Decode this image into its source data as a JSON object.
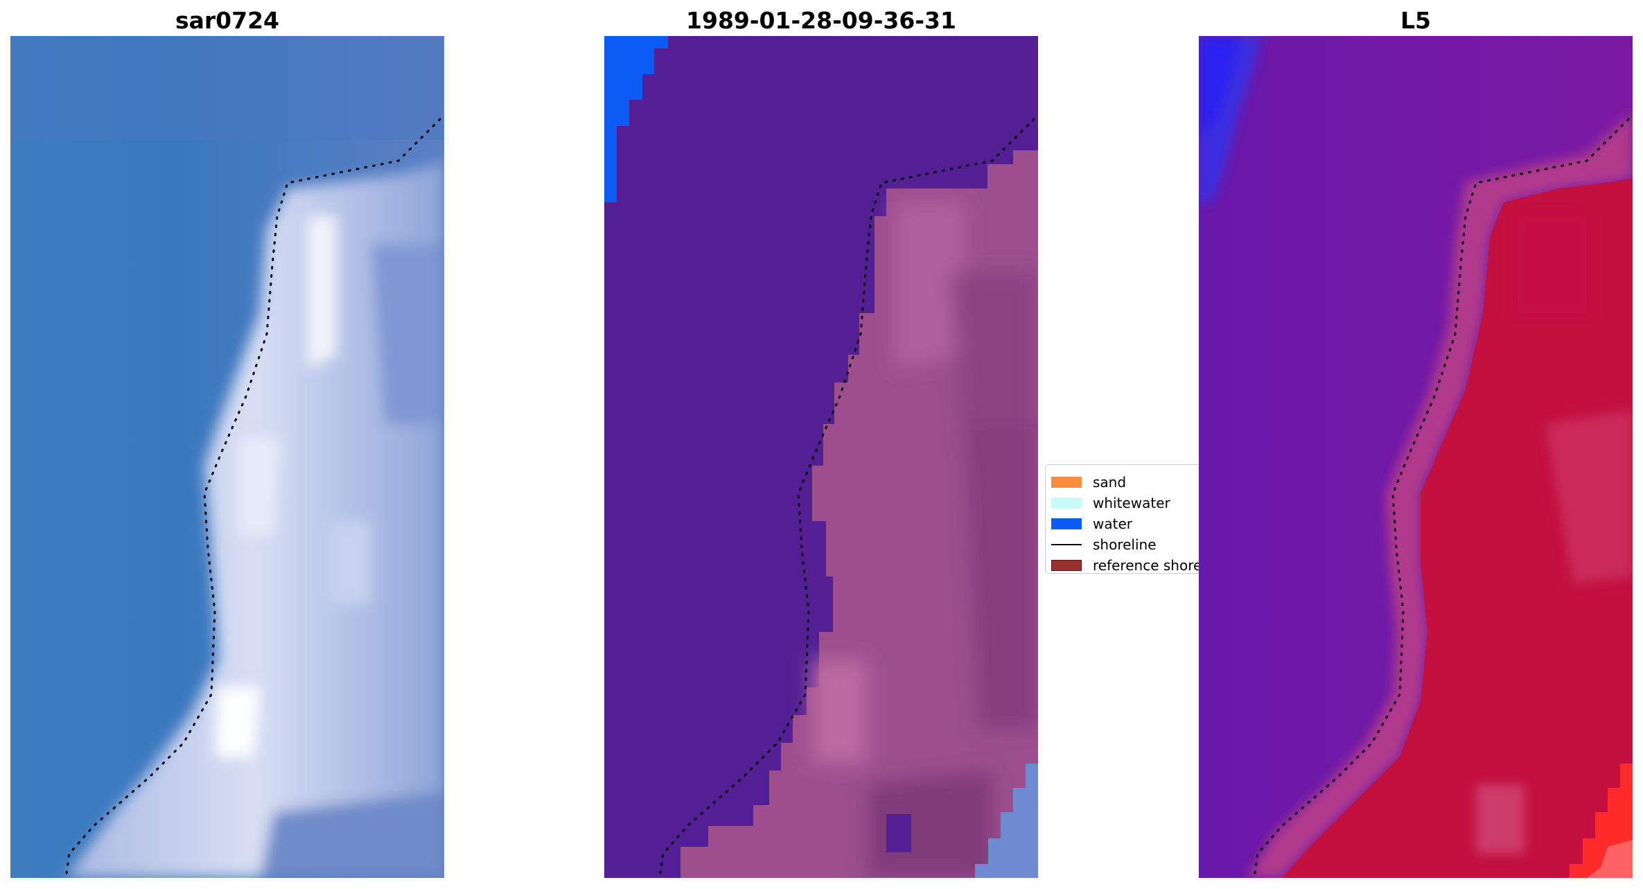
{
  "panels": [
    {
      "title": "sar0724",
      "kind": "rgb"
    },
    {
      "title": "1989-01-28-09-36-31",
      "kind": "classified"
    },
    {
      "title": "L5",
      "kind": "index"
    }
  ],
  "legend": {
    "items": [
      {
        "label": "sand",
        "color": "#fb8c3c",
        "type": "patch"
      },
      {
        "label": "whitewater",
        "color": "#c8fcf8",
        "type": "patch"
      },
      {
        "label": "water",
        "color": "#0a5cf5",
        "type": "patch"
      },
      {
        "label": "shoreline",
        "color": "#000000",
        "type": "line"
      },
      {
        "label": "reference shoreline",
        "color": "#9a2f2f",
        "type": "patch"
      }
    ]
  },
  "colors": {
    "rgb_sea": "#3f78bc",
    "rgb_surf": "#dfe6f6",
    "classified_water_class": "#532093",
    "classified_water_blue": "#0a5cf5",
    "classified_land": "#9c4f8c",
    "index_water": "#7015a8",
    "index_land": "#c2103f",
    "index_blue": "#1a28e8",
    "index_red": "#ff2424"
  }
}
